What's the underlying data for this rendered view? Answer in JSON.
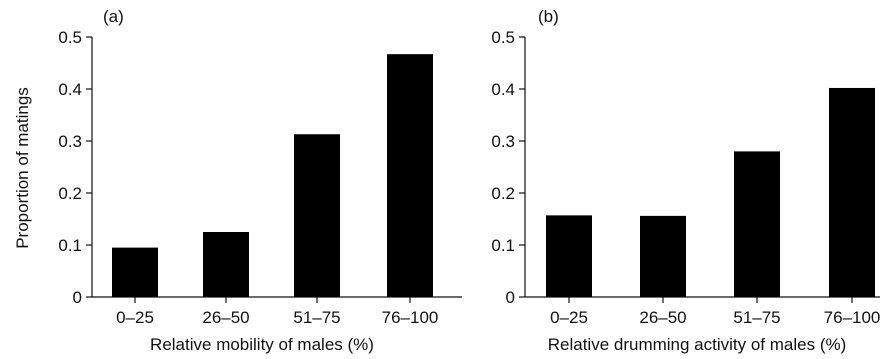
{
  "chart_data": [
    {
      "type": "bar",
      "panel_label": "(a)",
      "categories": [
        "0–25",
        "26–50",
        "51–75",
        "76–100"
      ],
      "values": [
        0.095,
        0.125,
        0.313,
        0.467
      ],
      "xlabel": "Relative mobility of males (%)",
      "ylabel": "Proportion of matings",
      "ylim": [
        0,
        0.5
      ],
      "yticks": [
        "0",
        "0.1",
        "0.2",
        "0.3",
        "0.4",
        "0.5"
      ],
      "grid": false,
      "bar_color": "#000000"
    },
    {
      "type": "bar",
      "panel_label": "(b)",
      "categories": [
        "0–25",
        "26–50",
        "51–75",
        "76–100"
      ],
      "values": [
        0.157,
        0.156,
        0.28,
        0.402
      ],
      "xlabel": "Relative drumming activity of males (%)",
      "ylabel": "",
      "ylim": [
        0,
        0.5
      ],
      "yticks": [
        "0",
        "0.1",
        "0.2",
        "0.3",
        "0.4",
        "0.5"
      ],
      "grid": false,
      "bar_color": "#000000"
    }
  ]
}
